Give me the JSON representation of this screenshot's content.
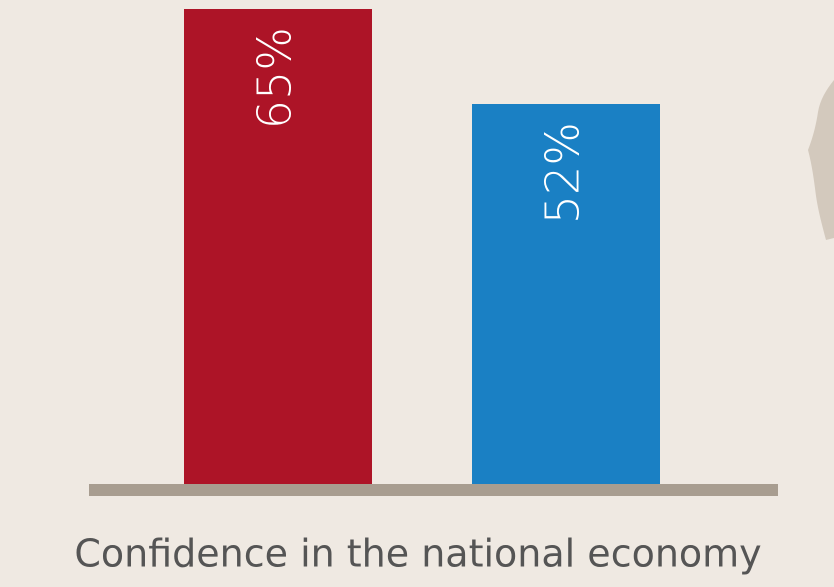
{
  "chart_data": {
    "type": "bar",
    "x_label": "Confidence in the national economy",
    "categories": [
      null,
      null
    ],
    "values": [
      65,
      52
    ],
    "value_labels": [
      "65%",
      "52%"
    ],
    "colors": [
      "#ad1427",
      "#1a80c4"
    ]
  }
}
